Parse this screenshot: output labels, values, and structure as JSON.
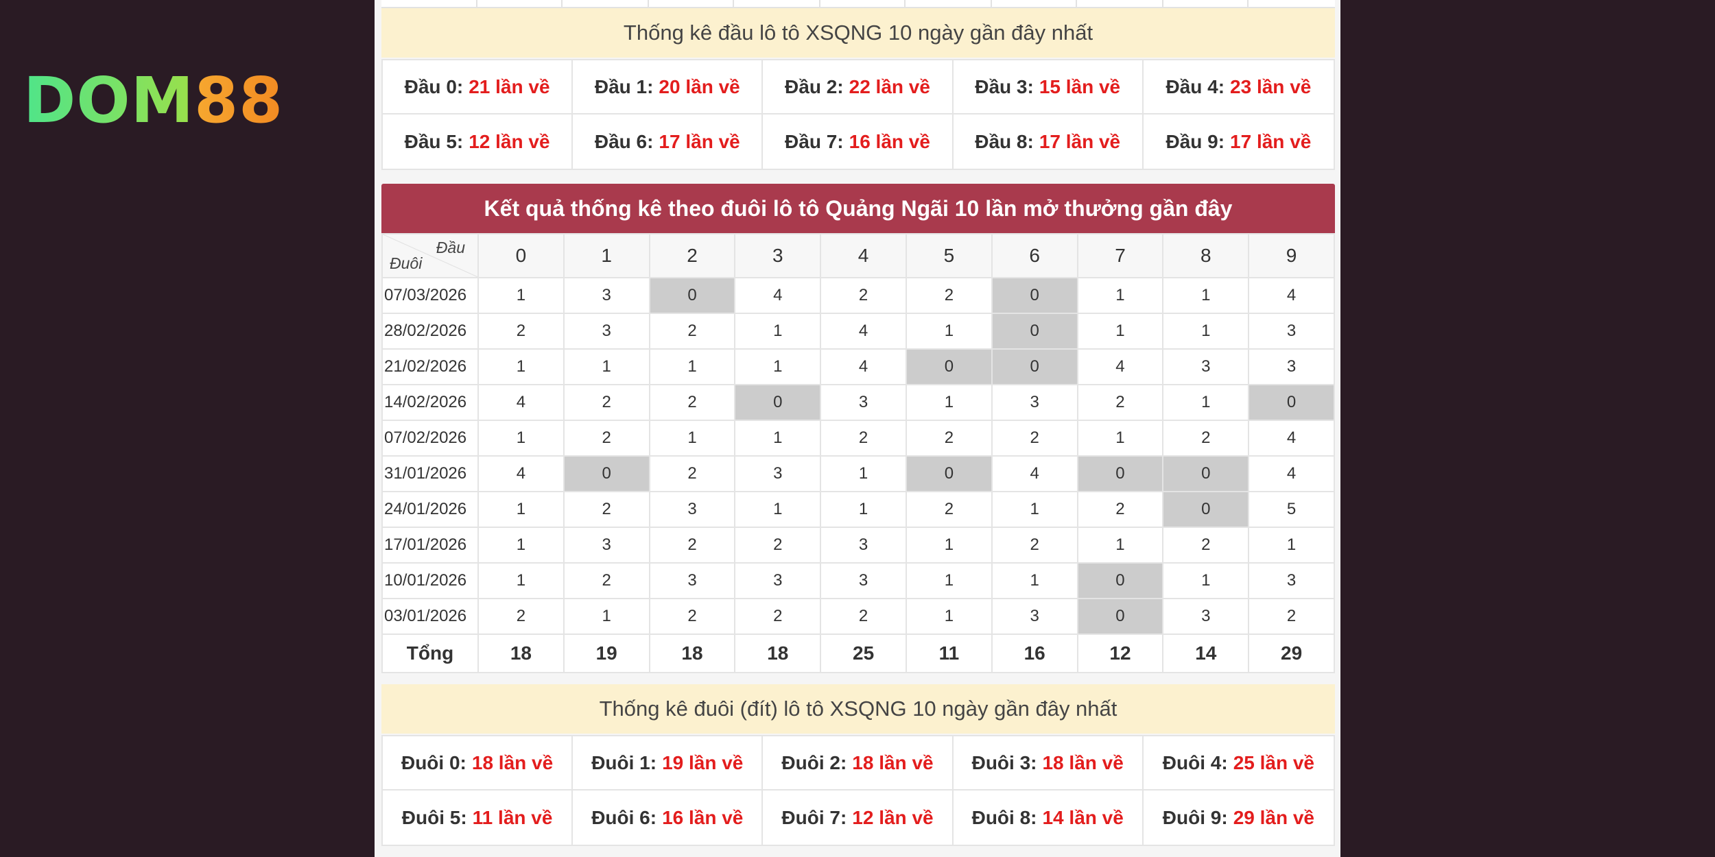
{
  "brand": {
    "part1": "DOM",
    "part2": "88"
  },
  "dau_stats": {
    "title": "Thống kê đầu lô tô XSQNG 10 ngày gần đây nhất",
    "items": [
      {
        "label": "Đầu 0:",
        "value": "21 lần về"
      },
      {
        "label": "Đầu 1:",
        "value": "20 lần về"
      },
      {
        "label": "Đầu 2:",
        "value": "22 lần về"
      },
      {
        "label": "Đầu 3:",
        "value": "15 lần về"
      },
      {
        "label": "Đầu 4:",
        "value": "23 lần về"
      },
      {
        "label": "Đầu 5:",
        "value": "12 lần về"
      },
      {
        "label": "Đầu 6:",
        "value": "17 lần về"
      },
      {
        "label": "Đầu 7:",
        "value": "16 lần về"
      },
      {
        "label": "Đầu 8:",
        "value": "17 lần về"
      },
      {
        "label": "Đầu 9:",
        "value": "17 lần về"
      }
    ]
  },
  "duoi_table": {
    "title": "Kết quả thống kê theo đuôi lô tô Quảng Ngãi 10 lần mở thưởng gần đây",
    "corner_top": "Đầu",
    "corner_bottom": "Đuôi",
    "columns": [
      "0",
      "1",
      "2",
      "3",
      "4",
      "5",
      "6",
      "7",
      "8",
      "9"
    ],
    "rows": [
      {
        "date": "07/03/2026",
        "values": [
          "1",
          "3",
          "0",
          "4",
          "2",
          "2",
          "0",
          "1",
          "1",
          "4"
        ]
      },
      {
        "date": "28/02/2026",
        "values": [
          "2",
          "3",
          "2",
          "1",
          "4",
          "1",
          "0",
          "1",
          "1",
          "3"
        ]
      },
      {
        "date": "21/02/2026",
        "values": [
          "1",
          "1",
          "1",
          "1",
          "4",
          "0",
          "0",
          "4",
          "3",
          "3"
        ]
      },
      {
        "date": "14/02/2026",
        "values": [
          "4",
          "2",
          "2",
          "0",
          "3",
          "1",
          "3",
          "2",
          "1",
          "0"
        ]
      },
      {
        "date": "07/02/2026",
        "values": [
          "1",
          "2",
          "1",
          "1",
          "2",
          "2",
          "2",
          "1",
          "2",
          "4"
        ]
      },
      {
        "date": "31/01/2026",
        "values": [
          "4",
          "0",
          "2",
          "3",
          "1",
          "0",
          "4",
          "0",
          "0",
          "4"
        ]
      },
      {
        "date": "24/01/2026",
        "values": [
          "1",
          "2",
          "3",
          "1",
          "1",
          "2",
          "1",
          "2",
          "0",
          "5"
        ]
      },
      {
        "date": "17/01/2026",
        "values": [
          "1",
          "3",
          "2",
          "2",
          "3",
          "1",
          "2",
          "1",
          "2",
          "1"
        ]
      },
      {
        "date": "10/01/2026",
        "values": [
          "1",
          "2",
          "3",
          "3",
          "3",
          "1",
          "1",
          "0",
          "1",
          "3"
        ]
      },
      {
        "date": "03/01/2026",
        "values": [
          "2",
          "1",
          "2",
          "2",
          "2",
          "1",
          "3",
          "0",
          "3",
          "2"
        ]
      }
    ],
    "total_label": "Tổng",
    "totals": [
      "18",
      "19",
      "18",
      "18",
      "25",
      "11",
      "16",
      "12",
      "14",
      "29"
    ]
  },
  "duoi_stats": {
    "title": "Thống kê đuôi (đít) lô tô XSQNG 10 ngày gần đây nhất",
    "items": [
      {
        "label": "Đuôi 0:",
        "value": "18 lần về"
      },
      {
        "label": "Đuôi 1:",
        "value": "19 lần về"
      },
      {
        "label": "Đuôi 2:",
        "value": "18 lần về"
      },
      {
        "label": "Đuôi 3:",
        "value": "18 lần về"
      },
      {
        "label": "Đuôi 4:",
        "value": "25 lần về"
      },
      {
        "label": "Đuôi 5:",
        "value": "11 lần về"
      },
      {
        "label": "Đuôi 6:",
        "value": "16 lần về"
      },
      {
        "label": "Đuôi 7:",
        "value": "12 lần về"
      },
      {
        "label": "Đuôi 8:",
        "value": "14 lần về"
      },
      {
        "label": "Đuôi 9:",
        "value": "29 lần về"
      }
    ]
  },
  "colors": {
    "background": "#2a1b24",
    "header_red": "#a93a4d",
    "highlight_gray": "#cccccc",
    "value_red": "#e31d1d",
    "banner_yellow": "#fcf1cf"
  }
}
